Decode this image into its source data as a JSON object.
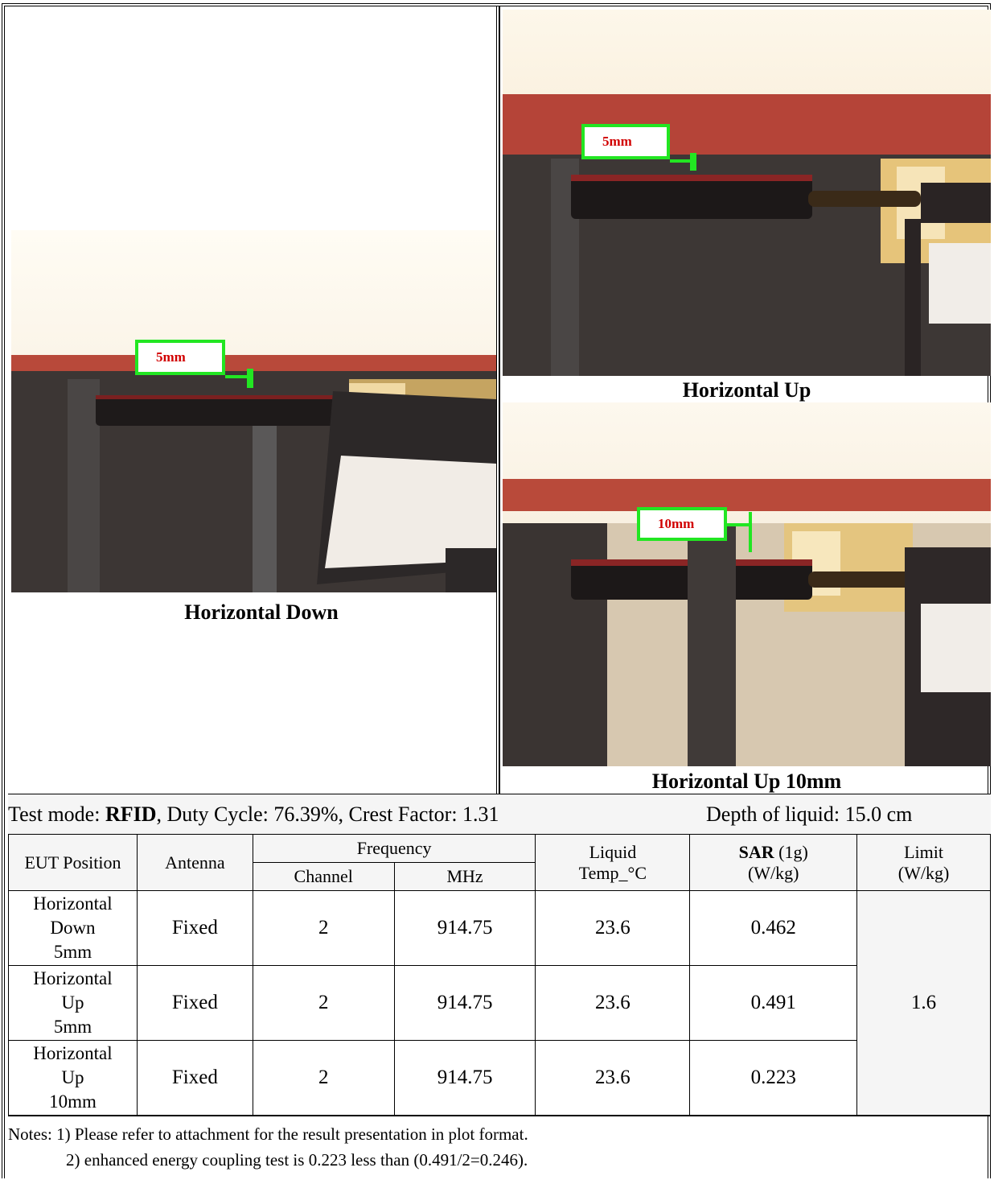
{
  "panels": {
    "down_caption": "Horizontal Down",
    "up_caption": "Horizontal Up",
    "up10_caption": "Horizontal Up 10mm",
    "down_label": "5mm",
    "up_label": "5mm",
    "up10_label": "10mm"
  },
  "test_mode": {
    "prefix": "Test mode: ",
    "mode": "RFID",
    "details": ", Duty Cycle: 76.39%, Crest Factor: 1.31",
    "depth": "Depth of liquid: 15.0 cm"
  },
  "table": {
    "headers": {
      "eut_position": "EUT Position",
      "antenna": "Antenna",
      "frequency": "Frequency",
      "channel": "Channel",
      "mhz": "MHz",
      "liquid_1": "Liquid",
      "liquid_2": "Temp_°C",
      "sar_bold": "SAR",
      "sar_rest": " (1g)",
      "sar_unit": "(W/kg)",
      "limit_1": "Limit",
      "limit_2": "(W/kg)"
    },
    "rows": [
      {
        "pos_1": "Horizontal",
        "pos_2": "Down",
        "pos_3": "5mm",
        "antenna": "Fixed",
        "channel": "2",
        "mhz": "914.75",
        "temp": "23.6",
        "sar": "0.462"
      },
      {
        "pos_1": "Horizontal",
        "pos_2": "Up",
        "pos_3": "5mm",
        "antenna": "Fixed",
        "channel": "2",
        "mhz": "914.75",
        "temp": "23.6",
        "sar": "0.491"
      },
      {
        "pos_1": "Horizontal",
        "pos_2": "Up",
        "pos_3": "10mm",
        "antenna": "Fixed",
        "channel": "2",
        "mhz": "914.75",
        "temp": "23.6",
        "sar": "0.223"
      }
    ],
    "limit": "1.6"
  },
  "notes": {
    "line1": "Notes: 1) Please refer to attachment for the result presentation in plot format.",
    "line2": "2) enhanced energy coupling test is 0.223 less than (0.491/2=0.246)."
  }
}
